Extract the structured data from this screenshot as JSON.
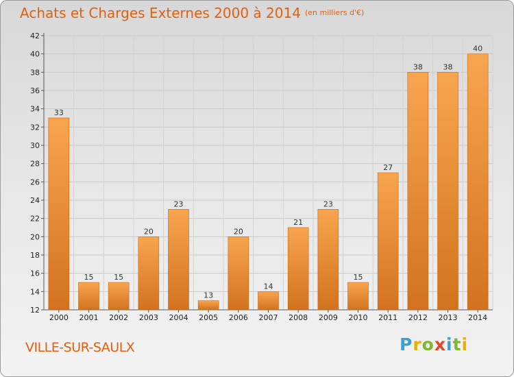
{
  "header": {
    "title": "Achats et Charges Externes 2000 à 2014",
    "subtitle": "(en milliers d'€)"
  },
  "footer": {
    "town": "VILLE-SUR-SAULX",
    "logo": [
      "P",
      "r",
      "o",
      "x",
      "i",
      "t",
      "i"
    ]
  },
  "colors": {
    "accent": "#e0600f",
    "bar_light": "#f8a54f",
    "bar_dark": "#d3721c"
  },
  "chart_data": {
    "type": "bar",
    "title": "Achats et Charges Externes 2000 à 2014",
    "subtitle": "(en milliers d'€)",
    "xlabel": "",
    "ylabel": "",
    "categories": [
      "2000",
      "2001",
      "2002",
      "2003",
      "2004",
      "2005",
      "2006",
      "2007",
      "2008",
      "2009",
      "2010",
      "2011",
      "2012",
      "2013",
      "2014"
    ],
    "values": [
      33,
      15,
      15,
      20,
      23,
      13,
      20,
      14,
      21,
      23,
      15,
      27,
      38,
      38,
      40
    ],
    "ylim": [
      12,
      42
    ],
    "yticks": [
      12,
      14,
      16,
      18,
      20,
      22,
      24,
      26,
      28,
      30,
      32,
      34,
      36,
      38,
      40,
      42
    ],
    "grid": true,
    "legend": "none"
  }
}
